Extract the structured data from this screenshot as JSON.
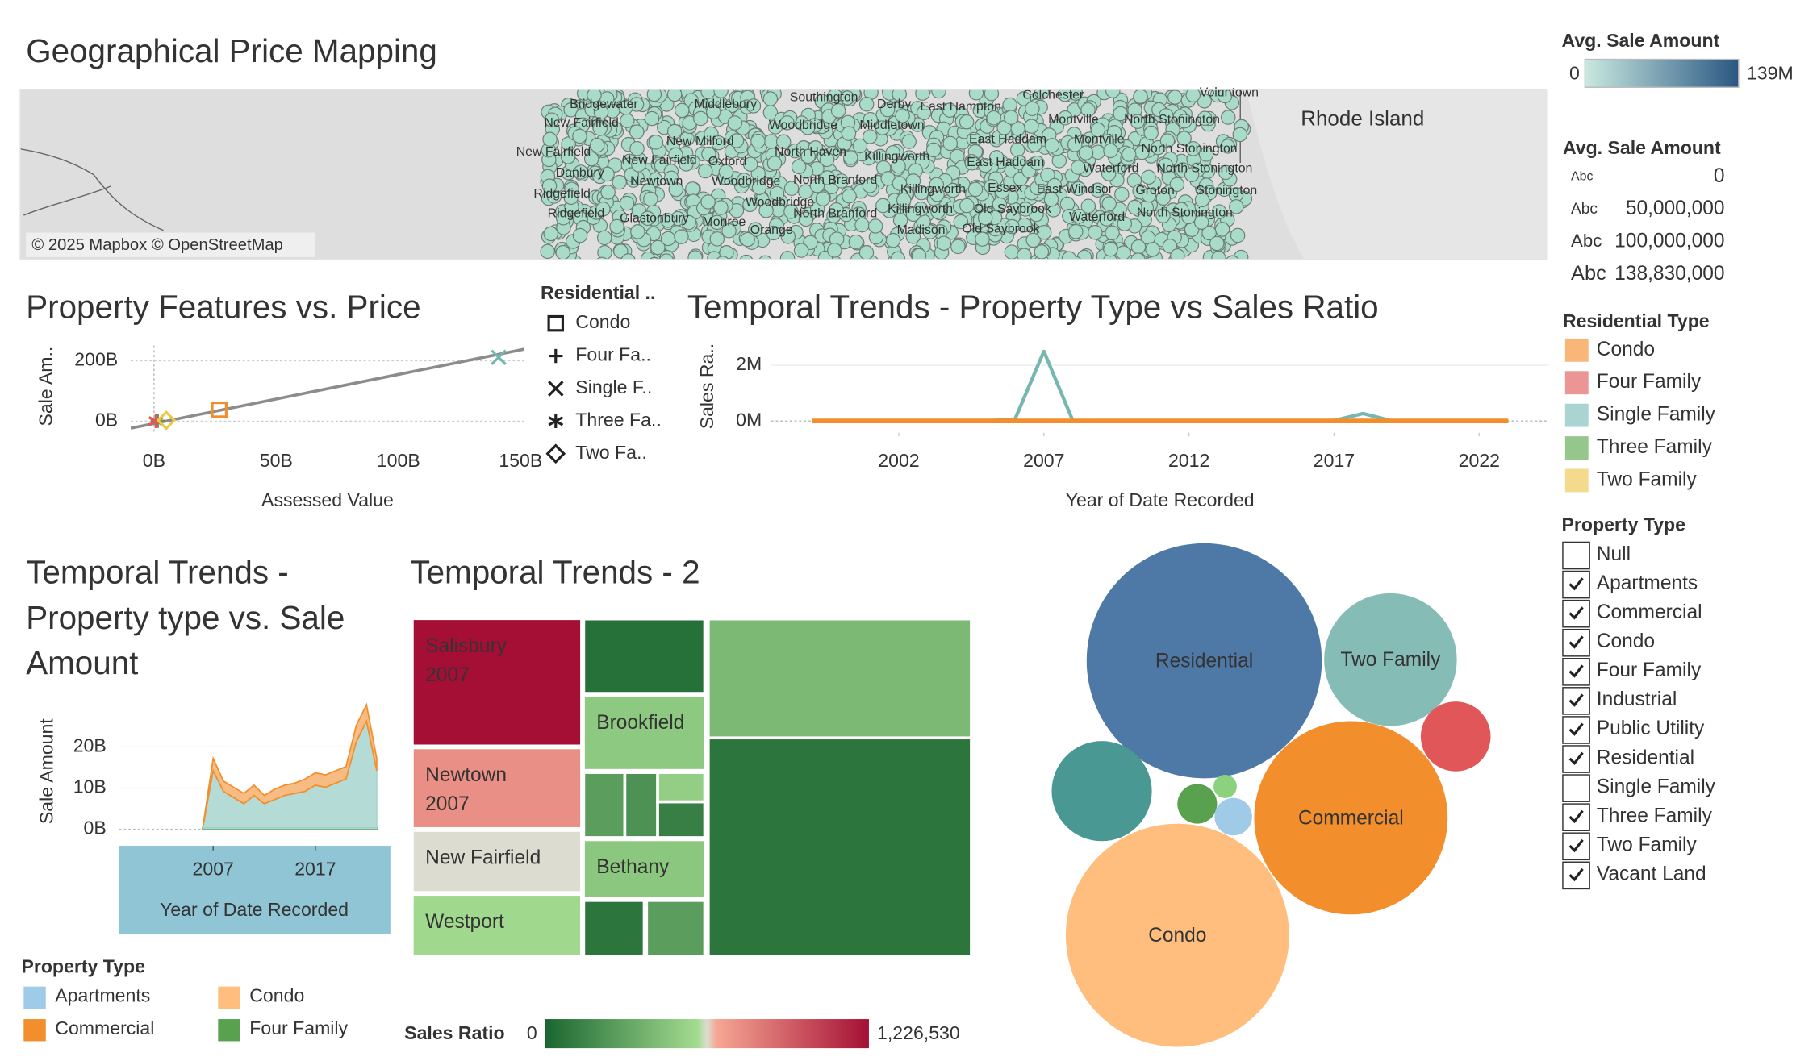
{
  "chart_data": [
    {
      "type": "map",
      "title": "Geographical Price Mapping",
      "attribution": "© 2025 Mapbox © OpenStreetMap",
      "region_label": "Rhode Island",
      "place_labels": [
        "Bridgewater",
        "Middlebury",
        "Southington",
        "Derby",
        "East Hampton",
        "Colchester",
        "Voluntown",
        "New Fairfield",
        "Woodbridge",
        "Middletown",
        "Montville",
        "North Stonington",
        "New Milford",
        "East Haddam",
        "Montville",
        "New Fairfield",
        "New Fairfield",
        "Oxford",
        "North Haven",
        "Killingworth",
        "East Haddam",
        "North Stonington",
        "North Stonington",
        "Danbury",
        "Newtown",
        "Woodbridge",
        "North Branford",
        "Waterford",
        "Ridgefield",
        "Woodbridge",
        "Killingworth",
        "Essex",
        "East Windsor",
        "Groton",
        "Stonington",
        "Ridgefield",
        "Glastonbury",
        "Monroe",
        "Orange",
        "North Branford",
        "Killingworth",
        "Old Saybrook",
        "Waterford",
        "North Stonington",
        "Madison",
        "Old Saybrook"
      ]
    },
    {
      "type": "scatter",
      "title": "Property Features vs. Price",
      "x_label": "Assessed Value",
      "y_label": "Sale Am..",
      "xlim": [
        -9.5,
        151.5
      ],
      "ylim": [
        -38,
        250
      ],
      "xticks": [
        {
          "value": 0,
          "label": "0B"
        },
        {
          "value": 50,
          "label": "50B"
        },
        {
          "value": 100,
          "label": "100B"
        },
        {
          "value": 150,
          "label": "150B"
        }
      ],
      "yticks": [
        {
          "value": 0,
          "label": "0B"
        },
        {
          "value": 200,
          "label": "200B"
        }
      ],
      "legend_title": "Residential ..",
      "series": [
        {
          "name": "Condo",
          "marker": "square",
          "color": "#f28e2b",
          "x": [
            26.7
          ],
          "y": [
            38
          ]
        },
        {
          "name": "Four Fa..",
          "marker": "plus",
          "color": "#59a14f",
          "x": [
            1.5
          ],
          "y": [
            1
          ]
        },
        {
          "name": "Single F..",
          "marker": "x",
          "color": "#76b7b2",
          "x": [
            141
          ],
          "y": [
            211
          ]
        },
        {
          "name": "Three Fa..",
          "marker": "asterisk",
          "color": "#e15759",
          "x": [
            0.8
          ],
          "y": [
            0.5
          ]
        },
        {
          "name": "Two Fa..",
          "marker": "diamond",
          "color": "#edc948",
          "x": [
            5
          ],
          "y": [
            3
          ]
        }
      ],
      "trend_line": {
        "color": "#8c8c8c",
        "x": [
          -9.5,
          151.5
        ],
        "y": [
          -23,
          238
        ]
      }
    },
    {
      "type": "line",
      "title": "Temporal Trends - Property Type vs Sales Ratio",
      "x_label": "Year of Date Recorded",
      "y_label": "Sales Ra..",
      "xlim": [
        1997.6,
        2024.4
      ],
      "ylim": [
        -0.42,
        2.71
      ],
      "xticks": [
        2002,
        2007,
        2012,
        2017,
        2022
      ],
      "yticks": [
        {
          "value": 0,
          "label": "0M"
        },
        {
          "value": 2,
          "label": "2M"
        }
      ],
      "x": [
        1999,
        2000,
        2001,
        2002,
        2003,
        2004,
        2005,
        2006,
        2007,
        2008,
        2009,
        2010,
        2011,
        2012,
        2013,
        2014,
        2015,
        2016,
        2017,
        2018,
        2019,
        2020,
        2021,
        2022,
        2023
      ],
      "series": [
        {
          "name": "Single Family",
          "color": "#76b7b2",
          "values": [
            0.005,
            0.005,
            0.005,
            0.005,
            0.005,
            0.005,
            0.005,
            0.06,
            2.5,
            0.005,
            0.005,
            0.005,
            0.005,
            0.005,
            0.005,
            0.005,
            0.005,
            0.005,
            0.02,
            0.27,
            0.005,
            0.005,
            0.005,
            0.005,
            0.005
          ]
        },
        {
          "name": "Condo",
          "color": "#f28e2b",
          "values": [
            0.003,
            0.003,
            0.003,
            0.003,
            0.003,
            0.003,
            0.003,
            0.003,
            0.003,
            0.003,
            0.003,
            0.003,
            0.003,
            0.003,
            0.003,
            0.003,
            0.003,
            0.003,
            0.003,
            0.003,
            0.003,
            0.003,
            0.003,
            0.003,
            0.003
          ]
        }
      ]
    },
    {
      "type": "area",
      "title_lines": [
        "Temporal Trends -",
        "Property type vs. Sale",
        "Amount"
      ],
      "x_label": "Year of Date Recorded",
      "y_label": "Sale Amount",
      "xlim": [
        1997.8,
        2023.2
      ],
      "ylim": [
        -4,
        32.4
      ],
      "xticks": [
        2007,
        2017
      ],
      "yticks": [
        {
          "value": 0,
          "label": "0B"
        },
        {
          "value": 10,
          "label": "10B"
        },
        {
          "value": 20,
          "label": "20B"
        }
      ],
      "x": [
        2006,
        2007,
        2008,
        2009,
        2010,
        2011,
        2012,
        2013,
        2014,
        2015,
        2016,
        2017,
        2018,
        2019,
        2020,
        2021,
        2022,
        2023
      ],
      "series": [
        {
          "name": "Four Family",
          "color": "#59a14f",
          "values": [
            0.2,
            0.2,
            0.2,
            0.2,
            0.2,
            0.2,
            0.2,
            0.2,
            0.2,
            0.2,
            0.2,
            0.2,
            0.2,
            0.2,
            0.2,
            0.2,
            0.2,
            0.2
          ]
        },
        {
          "name": "Single Family",
          "color": "#a8d5cf",
          "values": [
            0.4,
            14,
            9,
            7.5,
            6,
            8,
            6,
            7,
            8,
            8.5,
            9,
            10.5,
            10,
            11,
            12,
            21,
            26,
            14
          ]
        },
        {
          "name": "Condo",
          "color": "#f6b06f",
          "values": [
            0.1,
            3,
            2.5,
            2.5,
            2.5,
            2.5,
            2,
            2.5,
            2.5,
            2.5,
            3,
            3,
            3,
            3,
            3,
            4,
            4,
            3
          ]
        }
      ],
      "legend": {
        "title": "Property Type",
        "items": [
          {
            "name": "Apartments",
            "color": "#a0cbe8"
          },
          {
            "name": "Condo",
            "color": "#ffbe7d"
          },
          {
            "name": "Commercial",
            "color": "#f28e2b"
          },
          {
            "name": "Four Family",
            "color": "#59a14f"
          }
        ]
      }
    },
    {
      "type": "treemap",
      "title": "Temporal Trends - 2",
      "legend_title": "Sales Ratio",
      "colorlim": [
        0,
        1226530
      ],
      "color_ticks": [
        0,
        {
          "value": 1226530,
          "label": "1,226,530"
        }
      ],
      "tiles": [
        {
          "name": "Salisbury",
          "year": "2007",
          "value": 1226530
        },
        {
          "name": "Newtown",
          "year": "2007",
          "value": 736000
        },
        {
          "name": "New Fairfield",
          "value": 613000
        },
        {
          "name": "Westport",
          "value": 565000
        },
        {
          "name": "Brookfield",
          "value": 490000
        },
        {
          "name": "Bethany",
          "value": 480000
        }
      ]
    },
    {
      "type": "bubble",
      "categories": [
        "Residential",
        "Two Family",
        "Commercial",
        "Condo",
        null,
        null,
        null,
        null,
        null
      ],
      "values": [
        102,
        32.5,
        69,
        92,
        18.5,
        9,
        2.9,
        1,
        2.6
      ],
      "colors": [
        "#4e79a7",
        "#86bcb6",
        "#f28e2b",
        "#ffbe7d",
        "#499894",
        "#e15759",
        "#59a14f",
        "#8cd17d",
        "#a0cbe8"
      ]
    }
  ],
  "sidebar": {
    "color_legend": {
      "title": "Avg. Sale Amount",
      "ticks": [
        0,
        {
          "value": 139,
          "label": "139M"
        }
      ],
      "colors": [
        "#c9e9e0",
        "#2a5783"
      ]
    },
    "size_legend": {
      "title": "Avg. Sale Amount",
      "items": [
        {
          "sample": "Abc",
          "label": "0"
        },
        {
          "sample": "Abc",
          "label": "50,000,000"
        },
        {
          "sample": "Abc",
          "label": "100,000,000"
        },
        {
          "sample": "Abc",
          "label": "138,830,000"
        }
      ]
    },
    "residential_type": {
      "title": "Residential Type",
      "items": [
        {
          "name": "Condo",
          "color": "#f8b779"
        },
        {
          "name": "Four Family",
          "color": "#ec9595"
        },
        {
          "name": "Single Family",
          "color": "#a9d4d2"
        },
        {
          "name": "Three Family",
          "color": "#95c68c"
        },
        {
          "name": "Two Family",
          "color": "#f3da8c"
        }
      ]
    },
    "property_type": {
      "title": "Property Type",
      "items": [
        {
          "name": "Null",
          "checked": false
        },
        {
          "name": "Apartments",
          "checked": true
        },
        {
          "name": "Commercial",
          "checked": true
        },
        {
          "name": "Condo",
          "checked": true
        },
        {
          "name": "Four Family",
          "checked": true
        },
        {
          "name": "Industrial",
          "checked": true
        },
        {
          "name": "Public Utility",
          "checked": true
        },
        {
          "name": "Residential",
          "checked": true
        },
        {
          "name": "Single Family",
          "checked": false
        },
        {
          "name": "Three Family",
          "checked": true
        },
        {
          "name": "Two Family",
          "checked": true
        },
        {
          "name": "Vacant Land",
          "checked": true
        }
      ]
    }
  }
}
